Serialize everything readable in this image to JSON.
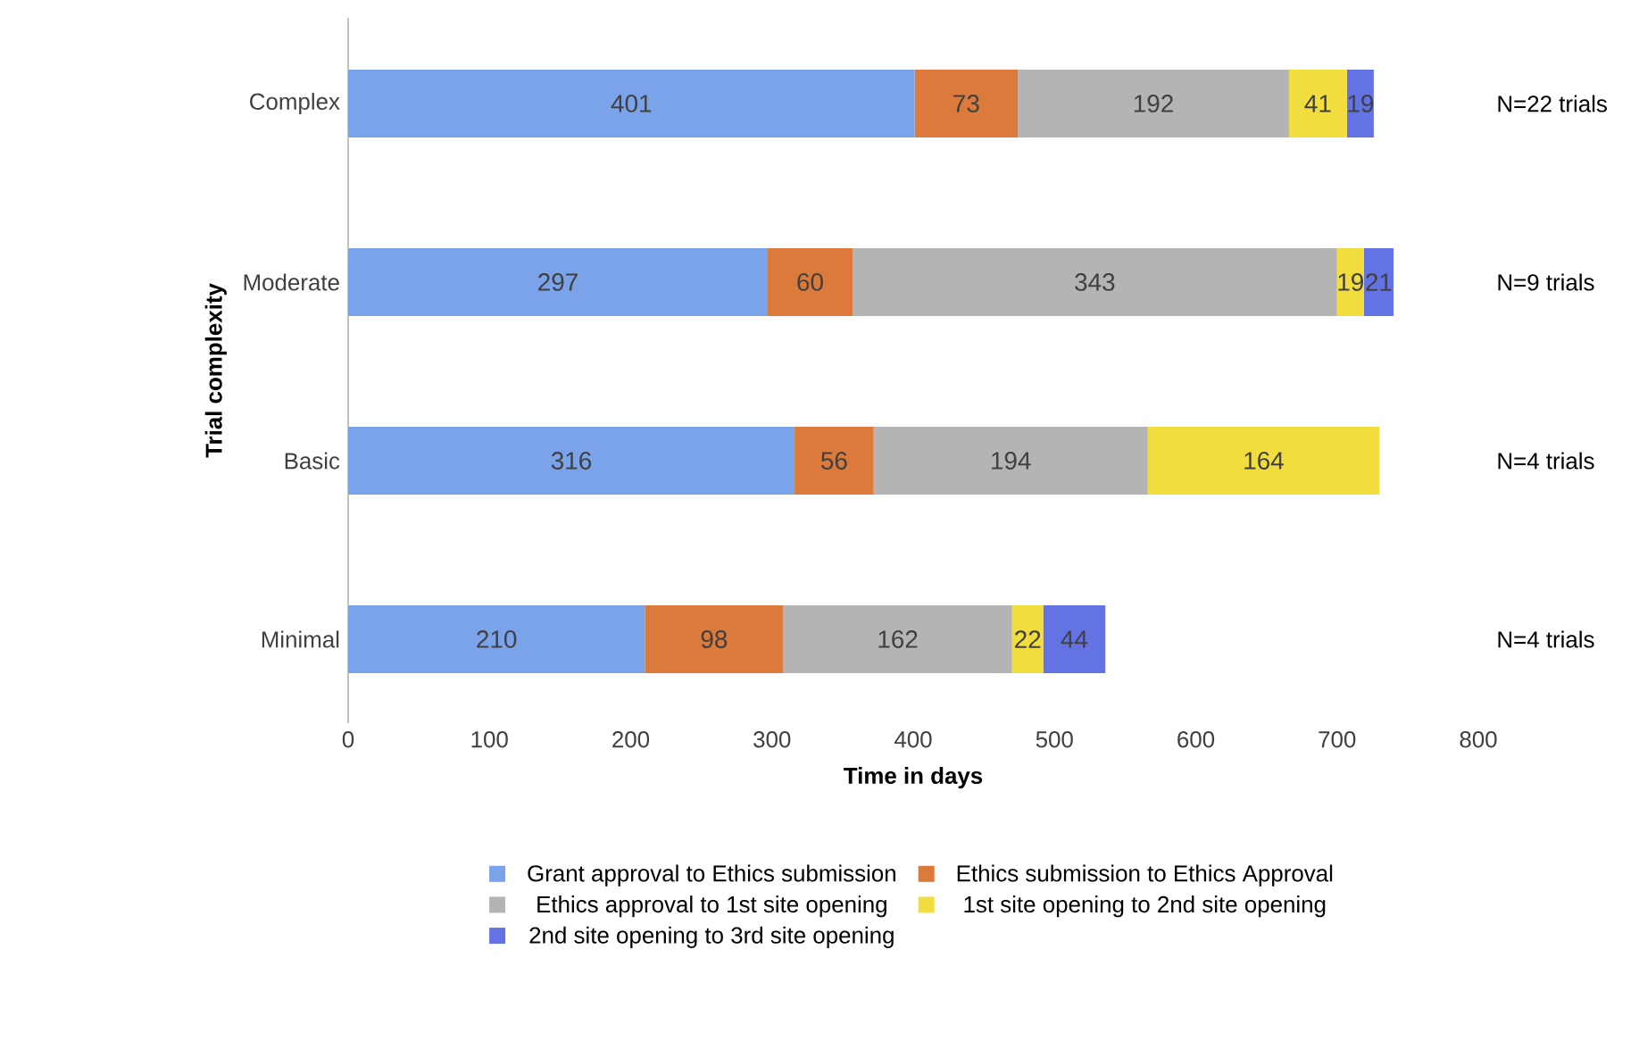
{
  "chart_data": {
    "type": "bar",
    "orientation": "horizontal",
    "stacked": true,
    "data_labels": true,
    "legend": "bottom",
    "grid": false,
    "xlabel": "Time in days",
    "ylabel": "Trial complexity",
    "categories": [
      "Complex",
      "Moderate",
      "Basic",
      "Minimal"
    ],
    "xlim": [
      0,
      800
    ],
    "xticks": [
      0,
      100,
      200,
      300,
      400,
      500,
      600,
      700,
      800
    ],
    "series": [
      {
        "name": "Grant approval to Ethics submission",
        "color": "#7aa3ea",
        "values": [
          401,
          297,
          316,
          210
        ]
      },
      {
        "name": "Ethics submission to Ethics Approval",
        "color": "#dc7a3c",
        "values": [
          73,
          60,
          56,
          98
        ]
      },
      {
        "name": "Ethics approval to 1st site opening",
        "color": "#b4b4b4",
        "values": [
          192,
          343,
          194,
          162
        ]
      },
      {
        "name": "1st site opening to 2nd site opening",
        "color": "#f2dd3e",
        "values": [
          41,
          19,
          164,
          22
        ]
      },
      {
        "name": "2nd site opening to 3rd site opening",
        "color": "#6373e4",
        "values": [
          19,
          21,
          null,
          44
        ]
      }
    ],
    "annotations": [
      "N=22 trials",
      "N=9 trials",
      "N=4 trials",
      "N=4 trials"
    ]
  }
}
